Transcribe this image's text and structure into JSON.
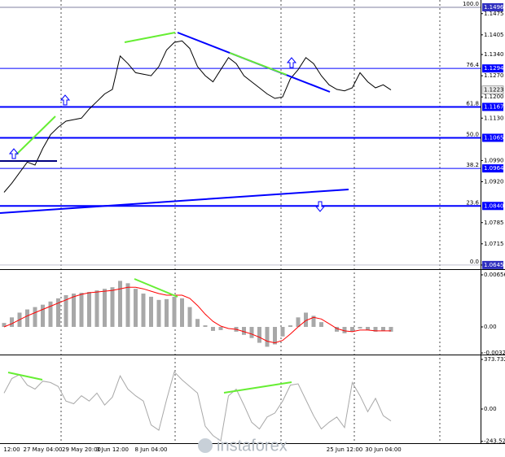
{
  "watermark": "instaforex",
  "chart_data": [
    {
      "type": "line",
      "color": "#000000",
      "categories": [
        null,
        "12:00",
        null,
        null,
        null,
        "27 May 04:00",
        null,
        null,
        null,
        null,
        "29 May 20:00",
        null,
        null,
        null,
        "3 Jun 12:00",
        null,
        null,
        null,
        null,
        "8 Jun 04:00",
        null,
        null,
        null,
        null,
        null,
        null,
        null,
        null,
        null,
        null,
        null,
        null,
        null,
        null,
        null,
        null,
        null,
        null,
        null,
        null,
        null,
        null,
        null,
        null,
        "25 Jun 12:00",
        null,
        null,
        null,
        null,
        "30 Jun 04:00",
        null
      ],
      "values": [
        1.0885,
        1.0915,
        1.095,
        1.0985,
        1.0975,
        1.103,
        1.1075,
        1.11,
        1.112,
        1.1125,
        1.113,
        1.116,
        1.1185,
        1.121,
        1.1225,
        1.1335,
        1.131,
        1.128,
        1.1275,
        1.127,
        1.13,
        1.1355,
        1.138,
        1.1385,
        1.136,
        1.13,
        1.127,
        1.125,
        1.129,
        1.133,
        1.131,
        1.127,
        1.125,
        1.123,
        1.121,
        1.1195,
        1.12,
        1.126,
        1.129,
        1.133,
        1.131,
        1.127,
        1.124,
        1.1225,
        1.122,
        1.123,
        1.128,
        1.125,
        1.123,
        1.124,
        1.1223
      ],
      "ylim": [
        1.0634,
        1.152
      ],
      "yticks": [
        1.1475,
        1.1405,
        {
          "value": 1.134,
          "label": "1.1340"
        },
        {
          "value": 1.127,
          "label": "1.1270"
        },
        {
          "value": 1.12,
          "label": "1.1200"
        },
        {
          "value": 1.113,
          "label": "1.1130"
        },
        {
          "value": 1.099,
          "label": "1.0990"
        },
        {
          "value": 1.092,
          "label": "1.0920"
        },
        1.0785,
        1.0715,
        1.0645
      ],
      "levels": [
        {
          "ratio": "100.0",
          "value": 1.1496,
          "label": "1.1496",
          "color": "#8080a0"
        },
        {
          "ratio": "76.4",
          "value": 1.1294,
          "label": "1.1294",
          "color": "#0000ff"
        },
        {
          "ratio": "61.8",
          "value": 1.1167,
          "label": "1.1167",
          "color": "#0000ff"
        },
        {
          "ratio": "50.0",
          "value": 1.1065,
          "label": "1.1065",
          "color": "#0000ff"
        },
        {
          "ratio": "38.2",
          "value": 1.0964,
          "label": "1.0964",
          "color": "#0000ff"
        },
        {
          "ratio": "23.6",
          "value": 1.084,
          "label": "1.0840",
          "color": "#0000ff"
        },
        {
          "ratio": "0.0",
          "value": 1.0645,
          "label": "1.0645",
          "color": "#c0c0d0"
        }
      ],
      "last": 1.1223
    },
    {
      "type": "macd",
      "color": "#a8a8a8",
      "signal_color": "#ff0000",
      "values": [
        0.0005,
        0.0012,
        0.0018,
        0.0022,
        0.0025,
        0.0028,
        0.0032,
        0.0036,
        0.004,
        0.0042,
        0.0043,
        0.0044,
        0.0046,
        0.0048,
        0.005,
        0.0058,
        0.0055,
        0.0048,
        0.0042,
        0.0038,
        0.0034,
        0.0035,
        0.0038,
        0.0036,
        0.0025,
        0.001,
        0.0002,
        -0.0005,
        -0.0004,
        0,
        -0.0006,
        -0.001,
        -0.0014,
        -0.002,
        -0.0025,
        -0.0022,
        -0.0012,
        0.0002,
        0.0012,
        0.0018,
        0.0014,
        0.0006,
        0,
        -0.0006,
        -0.0008,
        -0.0006,
        -0.0002,
        -0.0004,
        -0.0006,
        -0.0005,
        -0.0006
      ],
      "signal": [
        0,
        0.0004,
        0.0009,
        0.0014,
        0.0018,
        0.0022,
        0.0026,
        0.003,
        0.0034,
        0.0038,
        0.0041,
        0.0043,
        0.0044,
        0.0045,
        0.0046,
        0.0048,
        0.005,
        0.005,
        0.0048,
        0.0045,
        0.0042,
        0.004,
        0.004,
        0.004,
        0.0036,
        0.0027,
        0.0016,
        0.0007,
        0.0001,
        -0.0002,
        -0.0003,
        -0.0006,
        -0.0009,
        -0.0013,
        -0.0018,
        -0.002,
        -0.0017,
        -0.0009,
        0,
        0.0008,
        0.0012,
        0.001,
        0.0004,
        -0.0002,
        -0.0005,
        -0.0006,
        -0.0004,
        -0.0004,
        -0.0005,
        -0.0005,
        -0.0005
      ],
      "ylim": [
        -0.00348,
        0.00707
      ],
      "yticks": [
        0.00656,
        {
          "value": 0,
          "label": "0.00"
        },
        -0.00328
      ]
    },
    {
      "type": "line",
      "color": "#a8a8a8",
      "values": [
        120,
        230,
        260,
        180,
        150,
        210,
        200,
        170,
        60,
        40,
        100,
        60,
        120,
        30,
        90,
        250,
        150,
        100,
        60,
        -120,
        -160,
        70,
        280,
        220,
        170,
        120,
        -130,
        -200,
        -240,
        100,
        150,
        30,
        -100,
        -150,
        -60,
        -30,
        60,
        180,
        190,
        70,
        -50,
        -150,
        -100,
        -60,
        -140,
        200,
        100,
        -20,
        80,
        -50,
        -90
      ],
      "ylim": [
        -257.4,
        404.4
      ],
      "yticks": [
        373.7321,
        {
          "value": 0,
          "label": "0.00"
        },
        -243.5275
      ]
    }
  ]
}
